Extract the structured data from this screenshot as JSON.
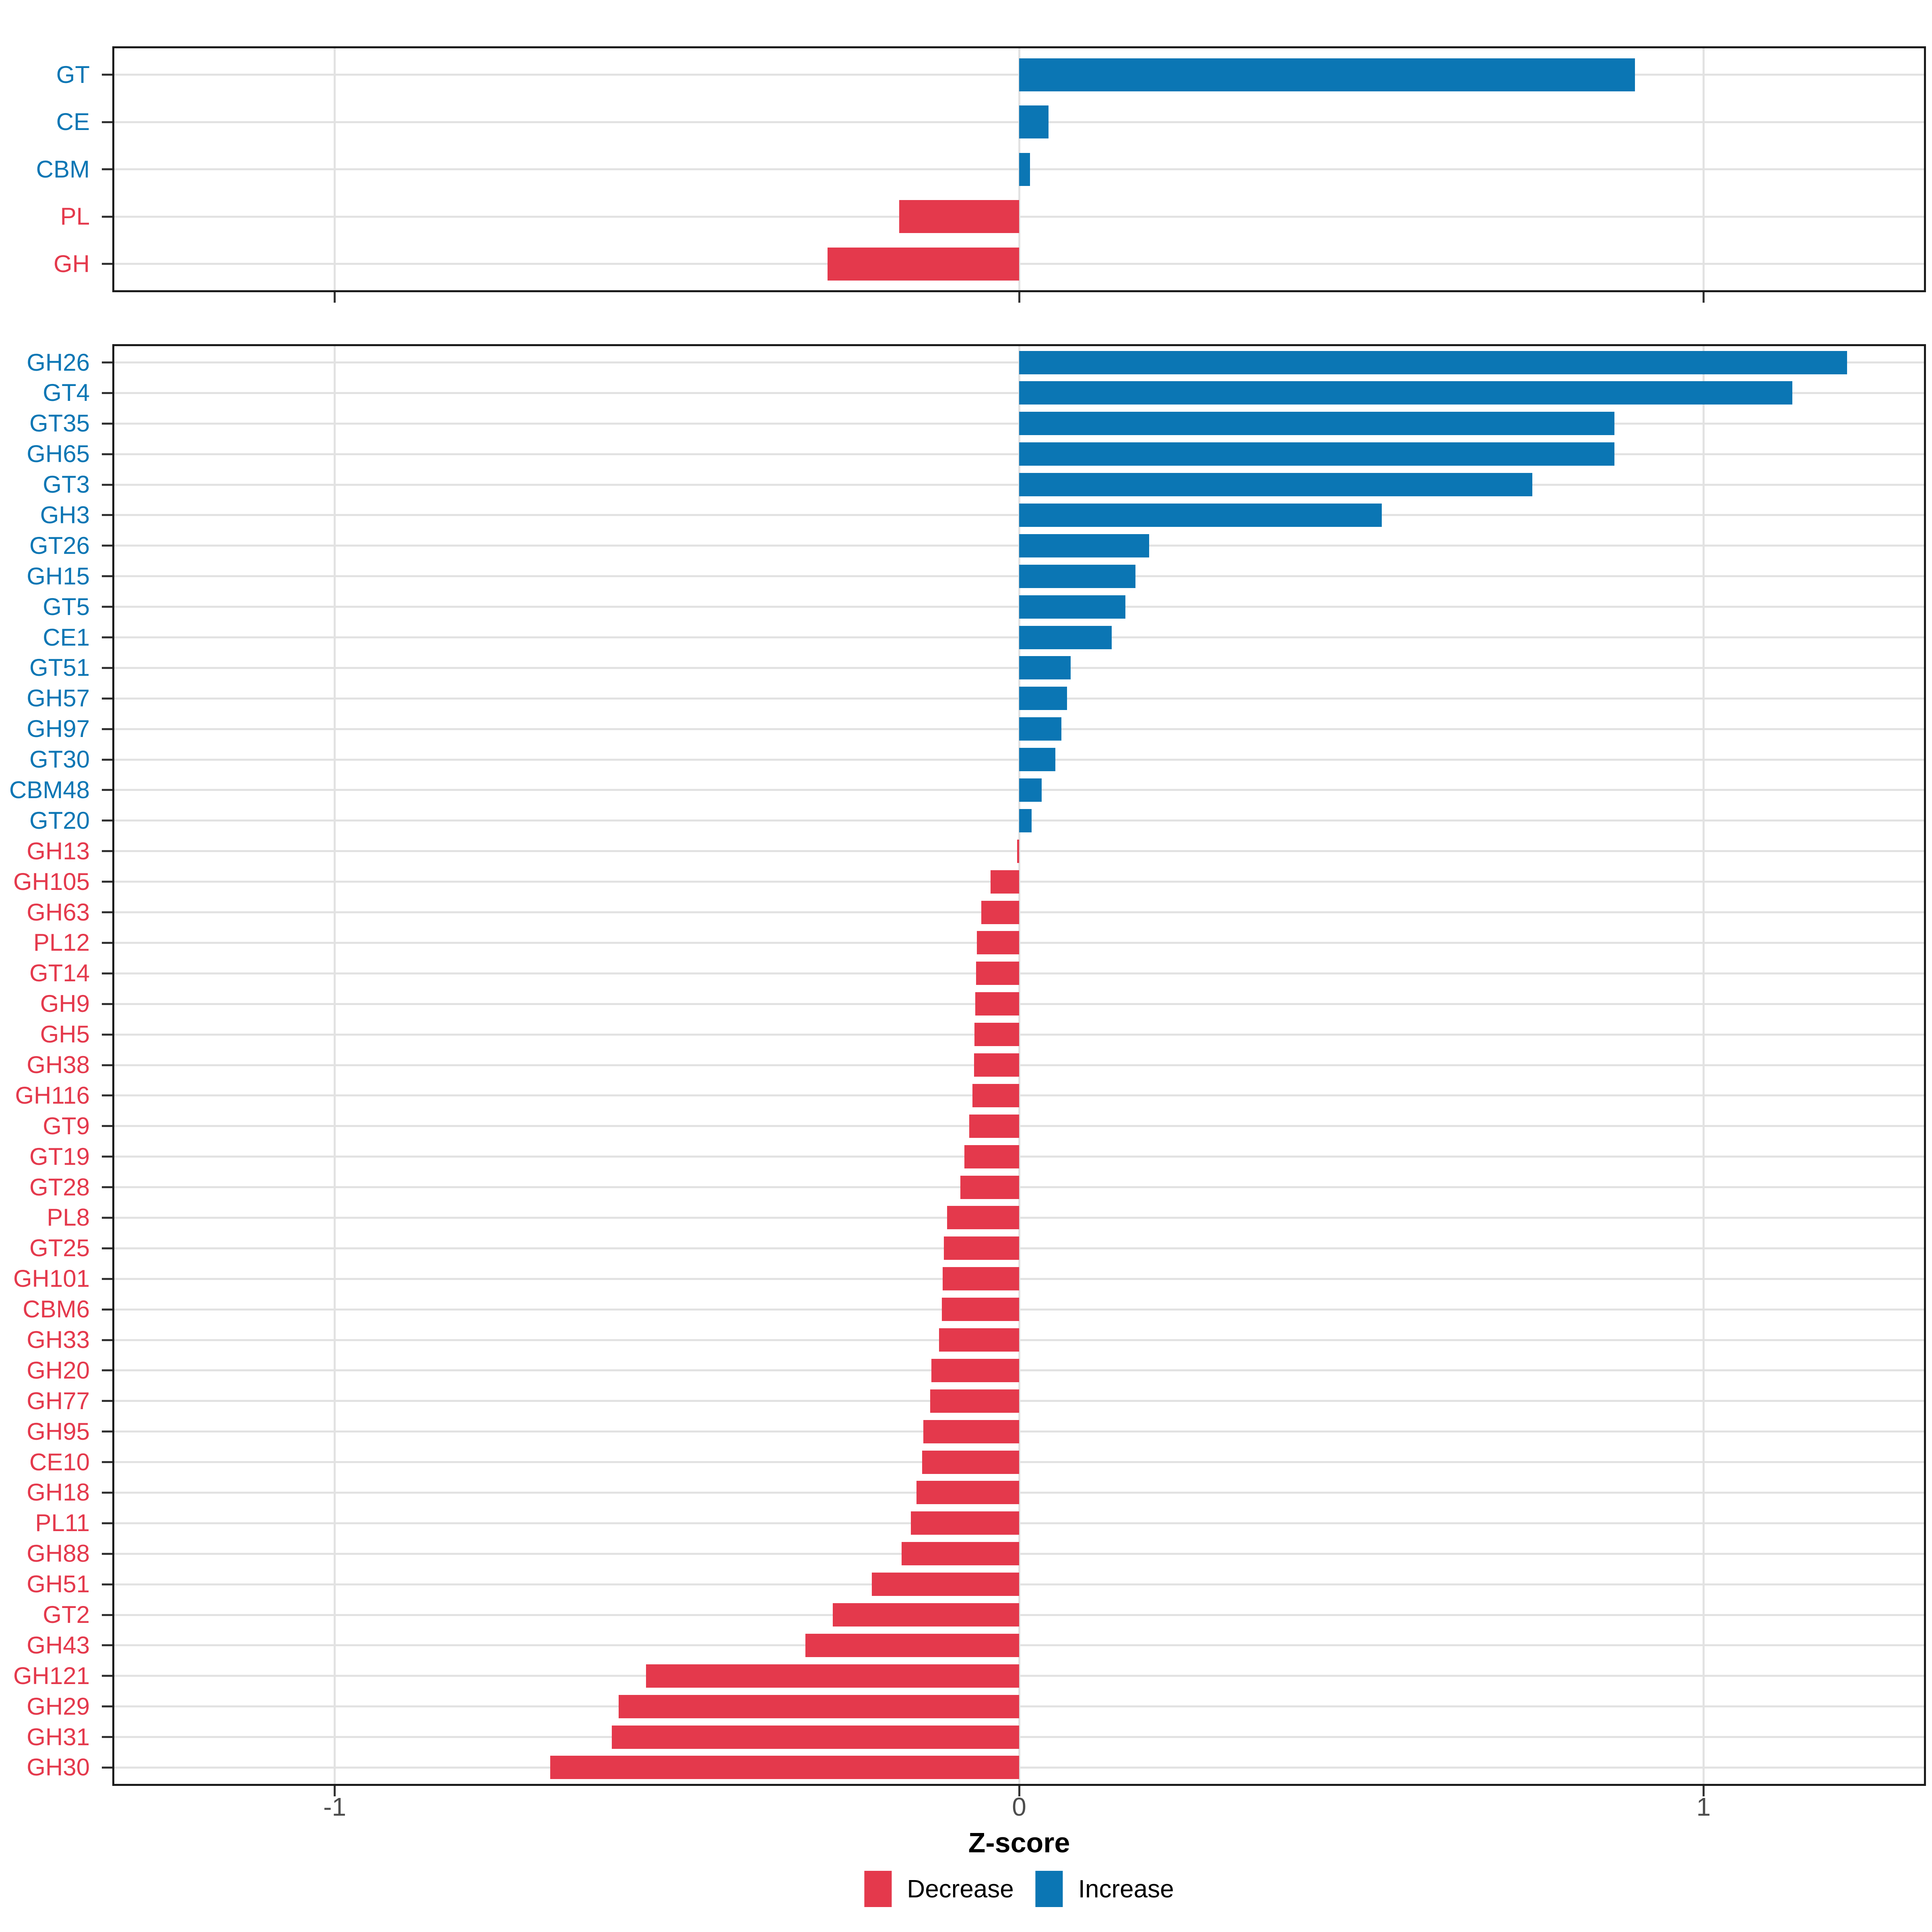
{
  "chart_data": {
    "type": "bar",
    "orientation": "horizontal",
    "title": "",
    "xlabel": "Z-score",
    "xticks": [
      -1,
      0,
      1
    ],
    "xtick_labels": [
      "-1",
      "0",
      "1"
    ],
    "xlim": [
      -1.325,
      1.325
    ],
    "grid": "major vertical gridlines at ticks, horizontal gridline per category",
    "legend_position": "bottom-center",
    "colors": {
      "decrease": "#E4394C",
      "increase": "#0B76B4",
      "gridline": "#E2E2E2",
      "panel_border": "#1B1B1B",
      "tick": "#333333",
      "tick_label": "#4D4D4D"
    },
    "legend": {
      "entries": [
        {
          "label": "Decrease",
          "key": "decrease"
        },
        {
          "label": "Increase",
          "key": "increase"
        }
      ]
    },
    "panels": [
      {
        "id": "cazyme-classes",
        "categories": [
          "GT",
          "CE",
          "CBM",
          "PL",
          "GH"
        ],
        "values": [
          0.9,
          0.043,
          0.016,
          -0.175,
          -0.28
        ]
      },
      {
        "id": "cazyme-families",
        "categories": [
          "GH26",
          "GT4",
          "GT35",
          "GH65",
          "GT3",
          "GH3",
          "GT26",
          "GH15",
          "GT5",
          "CE1",
          "GT51",
          "GH57",
          "GH97",
          "GT30",
          "CBM48",
          "GT20",
          "GH13",
          "GH105",
          "GH63",
          "PL12",
          "GT14",
          "GH9",
          "GH5",
          "GH38",
          "GH116",
          "GT9",
          "GT19",
          "GT28",
          "PL8",
          "GT25",
          "GH101",
          "CBM6",
          "GH33",
          "GH20",
          "GH77",
          "GH95",
          "CE10",
          "GH18",
          "PL11",
          "GH88",
          "GH51",
          "GT2",
          "GH43",
          "GH121",
          "GH29",
          "GH31",
          "GH30"
        ],
        "values": [
          1.21,
          1.13,
          0.87,
          0.87,
          0.75,
          0.53,
          0.19,
          0.17,
          0.155,
          0.135,
          0.075,
          0.07,
          0.062,
          0.053,
          0.033,
          0.018,
          -0.003,
          -0.042,
          -0.055,
          -0.062,
          -0.063,
          -0.064,
          -0.065,
          -0.066,
          -0.068,
          -0.073,
          -0.08,
          -0.086,
          -0.105,
          -0.11,
          -0.112,
          -0.113,
          -0.117,
          -0.128,
          -0.13,
          -0.14,
          -0.142,
          -0.15,
          -0.158,
          -0.172,
          -0.215,
          -0.272,
          -0.312,
          -0.545,
          -0.585,
          -0.595,
          -0.685
        ]
      }
    ]
  }
}
